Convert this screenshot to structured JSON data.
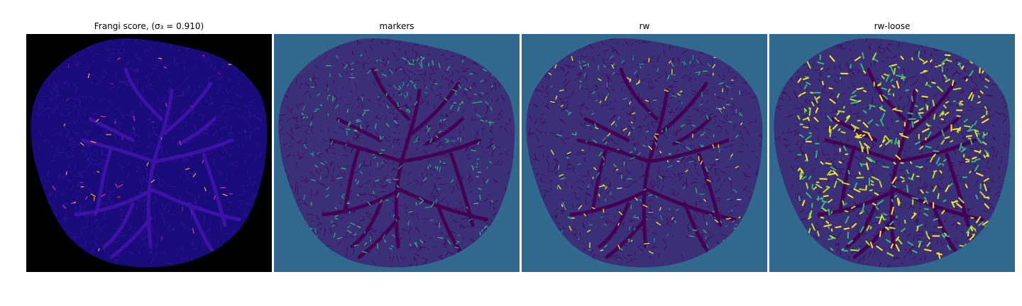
{
  "panels": [
    {
      "title": "Frangi score, (σ₃ = 0.910)",
      "background": "#000000",
      "blob_fill": "#1a0b7a",
      "vessel_color": "#3b12a6",
      "highlight_colors": [
        "#c23b8a",
        "#e8a53f",
        "#7a1ca8"
      ]
    },
    {
      "title": "markers",
      "background": "#31688e",
      "blob_fill": "#3b2f78",
      "vessel_color": "#440154",
      "highlight_colors": [
        "#35b779",
        "#21918c",
        "#2db27d"
      ]
    },
    {
      "title": "rw",
      "background": "#31688e",
      "blob_fill": "#3b2f78",
      "vessel_color": "#440154",
      "highlight_colors": [
        "#35b779",
        "#21918c",
        "#fde725"
      ]
    },
    {
      "title": "rw-loose",
      "background": "#31688e",
      "blob_fill": "#3b2f78",
      "vessel_color": "#440154",
      "highlight_colors": [
        "#fde725",
        "#35b779",
        "#b5de2b"
      ]
    }
  ]
}
